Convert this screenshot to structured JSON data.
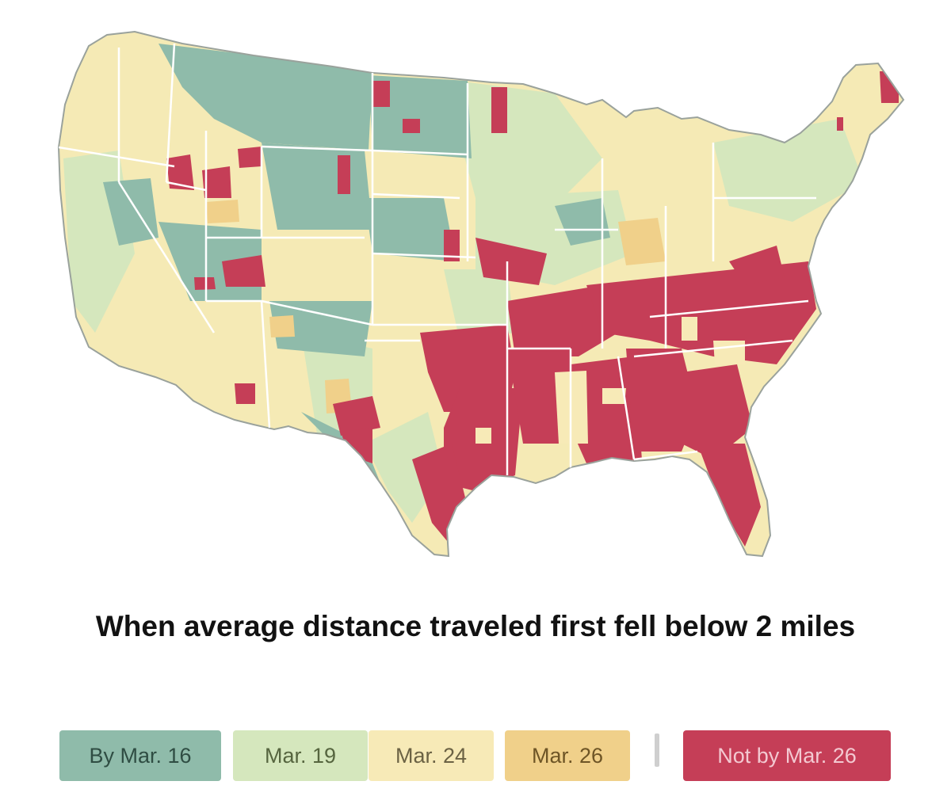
{
  "title": "When average distance traveled first fell below 2 miles",
  "legend": [
    {
      "label": "By Mar. 16",
      "color": "#8fbbaa",
      "text_color": "#2f4d43"
    },
    {
      "label": "Mar. 19",
      "color": "#d5e7bd",
      "text_color": "#56653f"
    },
    {
      "label": "Mar. 24",
      "color": "#f7eab7",
      "text_color": "#6b6244"
    },
    {
      "label": "Mar. 26",
      "color": "#f0d08a",
      "text_color": "#6e5526"
    },
    {
      "label": "Not by Mar. 26",
      "color": "#c53e57",
      "text_color": "#f3c9d1"
    }
  ],
  "map_data": {
    "type": "choropleth",
    "region": "Contiguous United States counties",
    "categories": [
      "By Mar. 16",
      "Mar. 19",
      "Mar. 24",
      "Mar. 26",
      "Not by Mar. 26"
    ],
    "dominant_pattern": "Not by Mar. 26 concentrated across the Southeast and East Texas; By Mar. 16 concentrated in Northern Plains and Mountain West; Mar. 19 and Mar. 24 widespread elsewhere"
  }
}
